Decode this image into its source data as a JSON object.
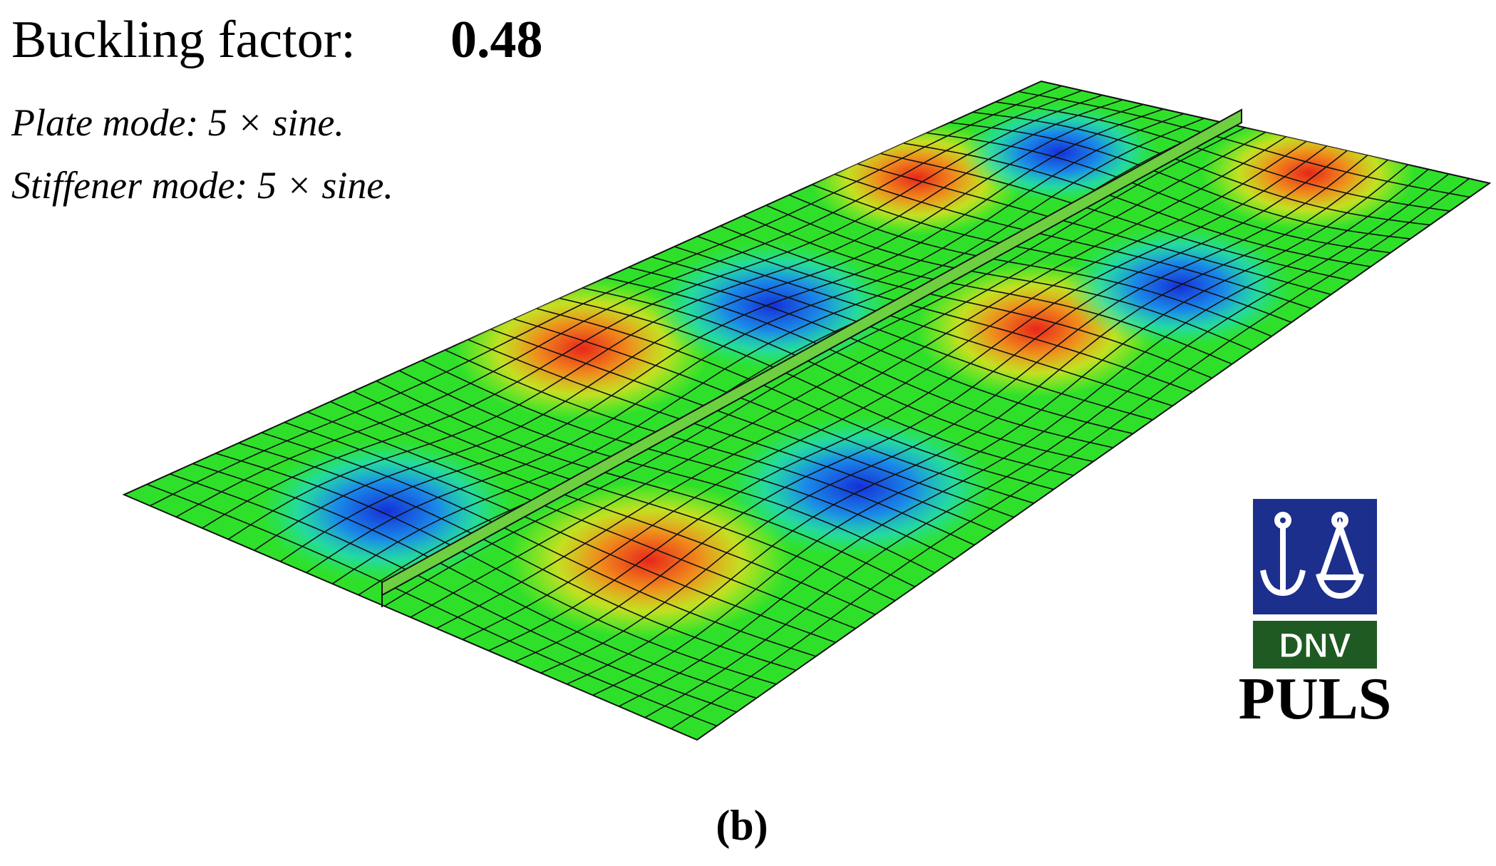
{
  "figure": {
    "title": "Buckling factor:",
    "factor": "0.48",
    "plate_mode": "Plate mode: 5 × sine.",
    "stiffener_mode": "Stiffener mode: 5 × sine.",
    "logo_text": "DNV",
    "software": "PULS",
    "panel_label": "(b)"
  }
}
